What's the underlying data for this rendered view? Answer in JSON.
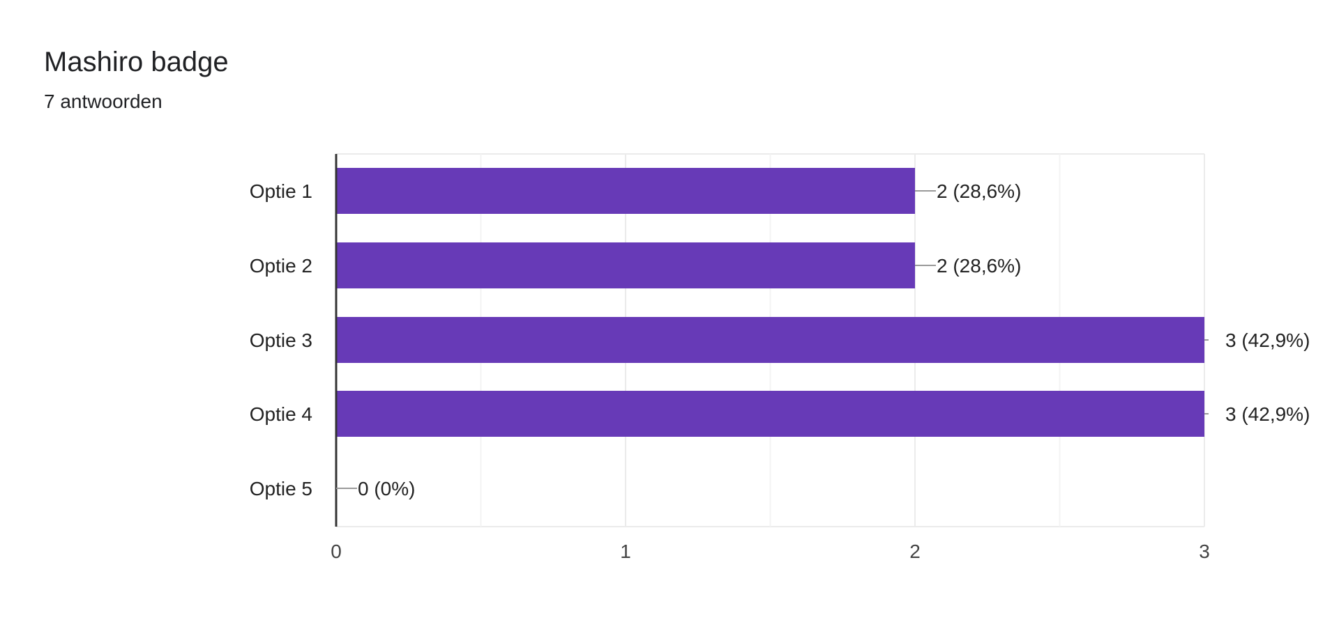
{
  "question": {
    "title": "Mashiro badge",
    "response_count": "7 antwoorden"
  },
  "colors": {
    "bar": "#673ab7",
    "grid": "#ebebeb",
    "axis": "#333333",
    "leader": "#999999",
    "text": "#222222",
    "tick_text": "#444444"
  },
  "chart_data": {
    "type": "bar",
    "orientation": "horizontal",
    "categories": [
      "Optie 1",
      "Optie 2",
      "Optie 3",
      "Optie 4",
      "Optie 5"
    ],
    "values": [
      2,
      2,
      3,
      3,
      0
    ],
    "data_labels": [
      "2 (28,6%)",
      "2 (28,6%)",
      "3 (42,9%)",
      "3 (42,9%)",
      "0 (0%)"
    ],
    "xlim": [
      0,
      3
    ],
    "xticks": [
      0,
      1,
      2,
      3
    ],
    "xticks_labels": [
      "0",
      "1",
      "2",
      "3"
    ],
    "minor_gridlines": [
      0.5,
      1.5,
      2.5
    ],
    "title": "",
    "xlabel": "",
    "ylabel": "",
    "grid": true,
    "legend": "none"
  }
}
